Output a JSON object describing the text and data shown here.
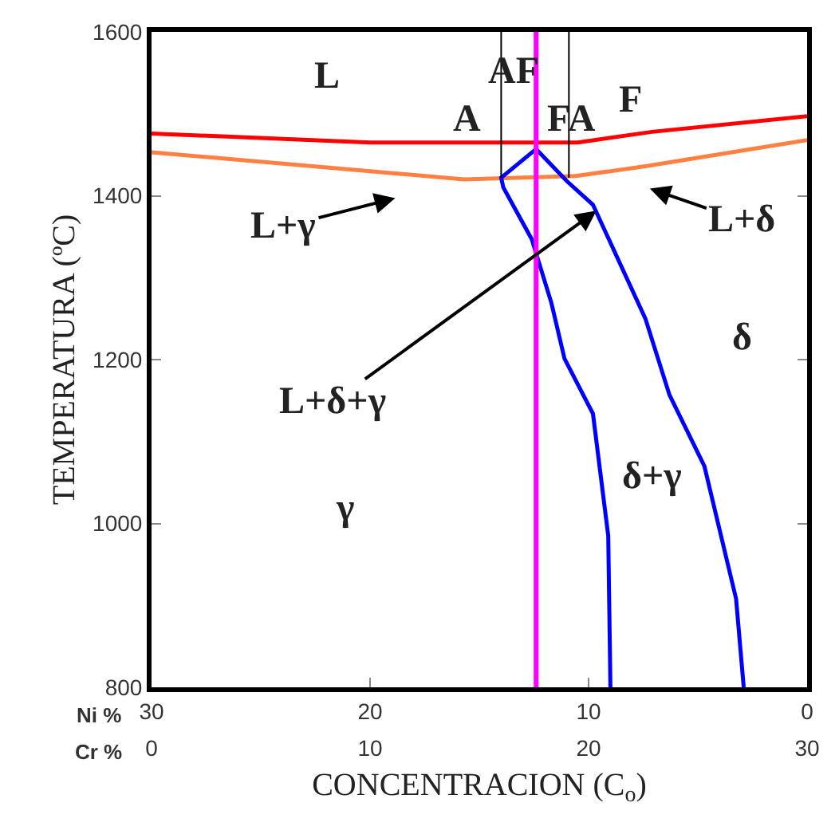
{
  "chart_data": {
    "type": "line",
    "xlabel": "CONCENTRACION (C$_{o}$)",
    "ylabel": "TEMPERATURA (ºC)",
    "xlim": [
      30,
      0
    ],
    "xticks": [
      30,
      20,
      10,
      0
    ],
    "x2lim": [
      0,
      30
    ],
    "x2ticks": [
      0,
      10,
      20,
      30
    ],
    "ylim": [
      800,
      1600
    ],
    "yticks": [
      800,
      1000,
      1200,
      1400,
      1600
    ],
    "marker": "none",
    "line_style": "solid",
    "series": [
      {
        "color": "#ff0000",
        "x": [
          30,
          20,
          12.4,
          10.5,
          7.1,
          0
        ],
        "values": [
          1476,
          1465,
          1465,
          1465,
          1478,
          1497
        ]
      },
      {
        "color": "#ff8040",
        "x": [
          30,
          20,
          15.7,
          10.6,
          7.4,
          0
        ],
        "values": [
          1453,
          1430,
          1420,
          1424,
          1436,
          1468
        ]
      },
      {
        "color": "#0000ff",
        "x": [
          9.0,
          9.1,
          9.8,
          11.1,
          11.7,
          12.6,
          13.9,
          14.0,
          12.4
        ],
        "values": [
          800,
          985,
          1134,
          1201,
          1269,
          1347,
          1410,
          1422,
          1457
        ]
      },
      {
        "color": "#0000ff",
        "x": [
          12.4,
          11.0,
          9.8,
          7.4,
          6.3,
          4.7,
          3.25,
          2.9
        ],
        "values": [
          1457,
          1418,
          1389,
          1250,
          1157,
          1070,
          908,
          800
        ]
      },
      {
        "color": "#000000",
        "x": [
          14.0,
          14.0
        ],
        "values": [
          1600,
          1422
        ]
      },
      {
        "color": "#000000",
        "x": [
          10.9,
          10.9
        ],
        "values": [
          1600,
          1422
        ]
      }
    ],
    "ref_lines": [
      {
        "axis": "x",
        "value": 12.4,
        "color": "#ff00ff"
      }
    ],
    "annotations": [
      "Ni %",
      "Cr %",
      "L",
      "A",
      "AF",
      "FA",
      "F",
      "L+γ",
      "L+δ",
      "δ",
      "L+δ+γ",
      "δ+γ",
      "γ"
    ]
  }
}
